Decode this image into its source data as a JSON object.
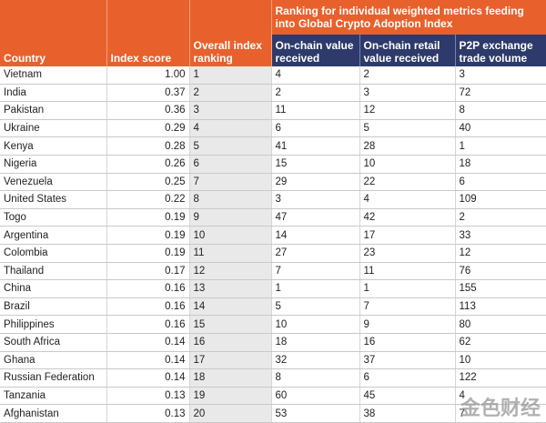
{
  "table": {
    "group_header": "Ranking for individual weighted metrics feeding into Global Crypto Adoption Index",
    "columns": [
      "Country",
      "Index score",
      "Overall index ranking",
      "On-chain value received",
      "On-chain retail value received",
      "P2P exchange trade volume"
    ],
    "rows": [
      [
        "Vietnam",
        "1.00",
        "1",
        "4",
        "2",
        "3"
      ],
      [
        "India",
        "0.37",
        "2",
        "2",
        "3",
        "72"
      ],
      [
        "Pakistan",
        "0.36",
        "3",
        "11",
        "12",
        "8"
      ],
      [
        "Ukraine",
        "0.29",
        "4",
        "6",
        "5",
        "40"
      ],
      [
        "Kenya",
        "0.28",
        "5",
        "41",
        "28",
        "1"
      ],
      [
        "Nigeria",
        "0.26",
        "6",
        "15",
        "10",
        "18"
      ],
      [
        "Venezuela",
        "0.25",
        "7",
        "29",
        "22",
        "6"
      ],
      [
        "United States",
        "0.22",
        "8",
        "3",
        "4",
        "109"
      ],
      [
        "Togo",
        "0.19",
        "9",
        "47",
        "42",
        "2"
      ],
      [
        "Argentina",
        "0.19",
        "10",
        "14",
        "17",
        "33"
      ],
      [
        "Colombia",
        "0.19",
        "11",
        "27",
        "23",
        "12"
      ],
      [
        "Thailand",
        "0.17",
        "12",
        "7",
        "11",
        "76"
      ],
      [
        "China",
        "0.16",
        "13",
        "1",
        "1",
        "155"
      ],
      [
        "Brazil",
        "0.16",
        "14",
        "5",
        "7",
        "113"
      ],
      [
        "Philippines",
        "0.16",
        "15",
        "10",
        "9",
        "80"
      ],
      [
        "South Africa",
        "0.14",
        "16",
        "18",
        "16",
        "62"
      ],
      [
        "Ghana",
        "0.14",
        "17",
        "32",
        "37",
        "10"
      ],
      [
        "Russian Federation",
        "0.14",
        "18",
        "8",
        "6",
        "122"
      ],
      [
        "Tanzania",
        "0.13",
        "19",
        "60",
        "45",
        "4"
      ],
      [
        "Afghanistan",
        "0.13",
        "20",
        "53",
        "38",
        "7"
      ]
    ]
  },
  "watermark": "金色财经"
}
